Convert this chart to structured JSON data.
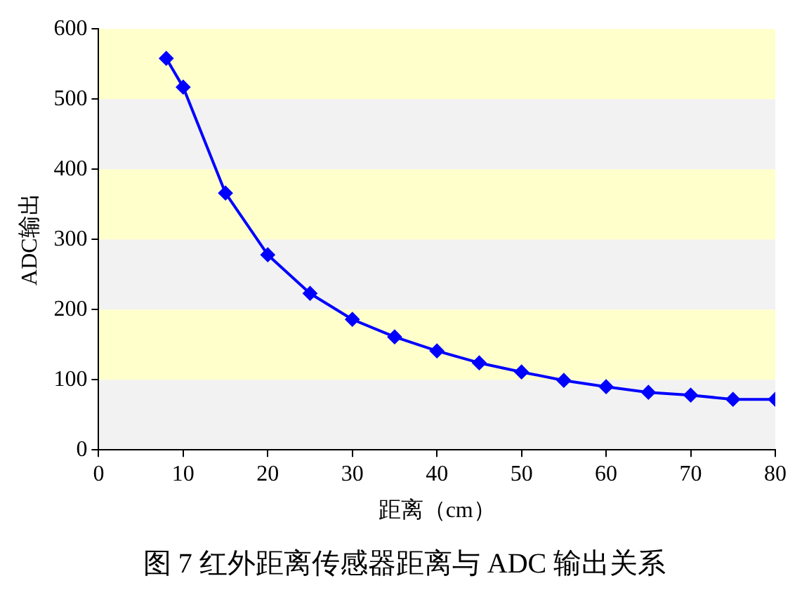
{
  "chart_data": {
    "type": "line",
    "title": "图 7 红外距离传感器距离与 ADC 输出关系",
    "xlabel": "距离（cm）",
    "ylabel": "ADC输出",
    "x": [
      8,
      10,
      15,
      20,
      25,
      30,
      35,
      40,
      45,
      50,
      55,
      60,
      65,
      70,
      75,
      80
    ],
    "series": [
      {
        "color": "#0000ff",
        "values": [
          558,
          517,
          366,
          278,
          223,
          186,
          161,
          141,
          124,
          111,
          99,
          90,
          82,
          78,
          72,
          72
        ]
      }
    ],
    "xlim": [
      0,
      80
    ],
    "xticks": [
      0,
      10,
      20,
      30,
      40,
      50,
      60,
      70,
      80
    ],
    "ylim": [
      0,
      600
    ],
    "yticks": [
      0,
      100,
      200,
      300,
      400,
      500,
      600
    ],
    "bands": [
      {
        "axis": "y",
        "from": 0,
        "to": 100,
        "color": "#f2f2f2"
      },
      {
        "axis": "y",
        "from": 100,
        "to": 200,
        "color": "#ffffcc"
      },
      {
        "axis": "y",
        "from": 200,
        "to": 300,
        "color": "#f2f2f2"
      },
      {
        "axis": "y",
        "from": 300,
        "to": 400,
        "color": "#ffffcc"
      },
      {
        "axis": "y",
        "from": 400,
        "to": 500,
        "color": "#f2f2f2"
      },
      {
        "axis": "y",
        "from": 500,
        "to": 600,
        "color": "#ffffcc"
      }
    ],
    "grid": false,
    "legend": false,
    "marker": "diamond",
    "line_style": "solid"
  }
}
